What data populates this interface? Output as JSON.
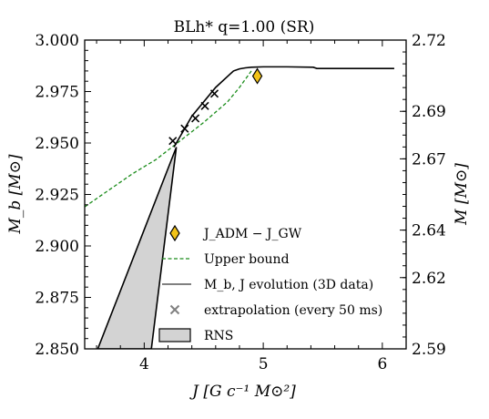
{
  "chart_data": {
    "type": "line",
    "title": "BLh* q=1.00 (SR)",
    "xlabel": "J [G c⁻¹ M⊙²]",
    "ylabel": "M_b [M⊙]",
    "ylabel_right": "M [M⊙]",
    "xlim": [
      3.5,
      6.2
    ],
    "ylim": [
      2.85,
      3.0
    ],
    "ylim_right": [
      2.59,
      2.72
    ],
    "x_ticks": [
      "4",
      "5",
      "6"
    ],
    "x_tick_values": [
      4,
      5,
      6
    ],
    "y_ticks": [
      "2.850",
      "2.875",
      "2.900",
      "2.925",
      "2.950",
      "2.975",
      "3.000"
    ],
    "y_tick_values": [
      2.85,
      2.875,
      2.9,
      2.925,
      2.95,
      2.975,
      3.0
    ],
    "y_right_ticks": [
      "2.59",
      "2.62",
      "2.64",
      "2.67",
      "2.69",
      "2.72"
    ],
    "y_right_tick_values": [
      2.59,
      2.62,
      2.64,
      2.67,
      2.69,
      2.72
    ],
    "grid": false,
    "legend_position": "lower-right",
    "legend": [
      {
        "label": "J_ADM − J_GW",
        "marker": "diamond",
        "color": "#f2c318"
      },
      {
        "label": "Upper bound",
        "style": "dashed",
        "color": "#1a8c1a"
      },
      {
        "label": "M_b, J evolution (3D data)",
        "style": "solid",
        "color": "#808080"
      },
      {
        "label": "extrapolation (every 50 ms)",
        "marker": "x",
        "color": "#808080"
      },
      {
        "label": "RNS",
        "style": "fill",
        "color": "#d3d3d3"
      }
    ],
    "series": [
      {
        "name": "Upper bound",
        "style": "dashed",
        "color": "#1a8c1a",
        "x": [
          3.5,
          3.7,
          3.9,
          4.1,
          4.3,
          4.5,
          4.7,
          4.8,
          4.9
        ],
        "y": [
          2.919,
          2.927,
          2.935,
          2.942,
          2.951,
          2.96,
          2.97,
          2.977,
          2.985
        ]
      },
      {
        "name": "M_b, J evolution (3D data)",
        "style": "solid",
        "color": "#000000",
        "x": [
          4.25,
          4.4,
          4.6,
          4.75,
          4.8,
          4.85,
          4.9,
          5.0,
          5.2,
          5.42,
          5.45,
          5.8,
          6.1
        ],
        "y": [
          2.948,
          2.963,
          2.977,
          2.985,
          2.986,
          2.9865,
          2.9868,
          2.987,
          2.987,
          2.9868,
          2.9862,
          2.9862,
          2.9862
        ]
      },
      {
        "name": "extrapolation (every 50 ms)",
        "marker": "x",
        "color": "#000000",
        "x": [
          4.24,
          4.34,
          4.43,
          4.51,
          4.59
        ],
        "y": [
          2.951,
          2.957,
          2.962,
          2.968,
          2.974
        ]
      },
      {
        "name": "J_ADM − J_GW",
        "marker": "diamond",
        "color": "#f2c318",
        "x": [
          4.95
        ],
        "y": [
          2.9825
        ]
      }
    ],
    "region": {
      "name": "RNS",
      "color": "#d3d3d3",
      "x": [
        4.27,
        3.61,
        4.06
      ],
      "y": [
        2.948,
        2.85,
        2.85
      ]
    }
  }
}
